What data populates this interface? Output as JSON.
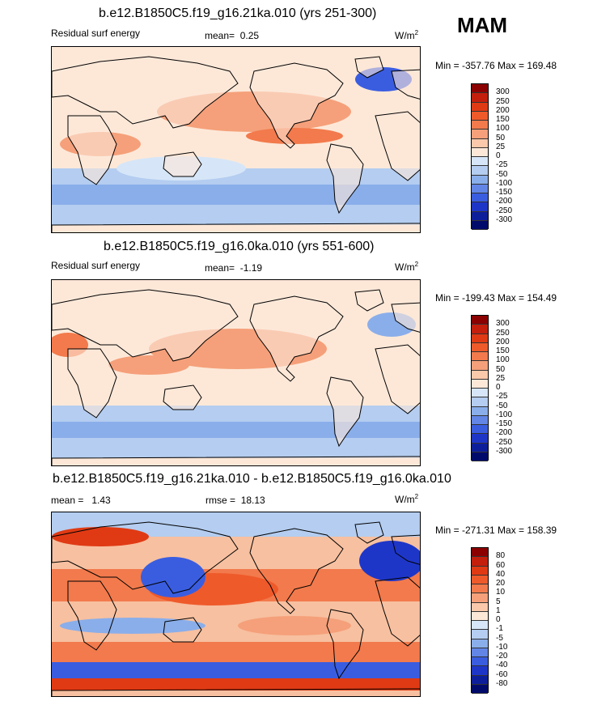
{
  "season": "MAM",
  "panels": [
    {
      "title": "b.e12.B1850C5.f19_g16.21ka.010 (yrs 251-300)",
      "left_label": "Residual surf energy",
      "stat_label": "mean=",
      "stat_value": "0.25",
      "units": "W/m",
      "units_sup": "2",
      "minmax": "Min = -357.76 Max = 169.48",
      "levels": [
        "300",
        "250",
        "200",
        "150",
        "100",
        "50",
        "25",
        "0",
        "-25",
        "-50",
        "-100",
        "-150",
        "-200",
        "-250",
        "-300"
      ],
      "colors": [
        "#8b0000",
        "#c41e0c",
        "#e03a14",
        "#ef5a2b",
        "#f27a4c",
        "#f5a07a",
        "#fac8aa",
        "#fde8d8",
        "#d6e6f8",
        "#b4cdf0",
        "#8aaeea",
        "#6285e6",
        "#3a5de0",
        "#1e36c8",
        "#0d1e9a",
        "#000a6a"
      ],
      "tone": "a"
    },
    {
      "title": "b.e12.B1850C5.f19_g16.0ka.010 (yrs 551-600)",
      "left_label": "Residual surf energy",
      "stat_label": "mean=",
      "stat_value": "-1.19",
      "units": "W/m",
      "units_sup": "2",
      "minmax": "Min = -199.43 Max = 154.49",
      "levels": [
        "300",
        "250",
        "200",
        "150",
        "100",
        "50",
        "25",
        "0",
        "-25",
        "-50",
        "-100",
        "-150",
        "-200",
        "-250",
        "-300"
      ],
      "colors": [
        "#8b0000",
        "#c41e0c",
        "#e03a14",
        "#ef5a2b",
        "#f27a4c",
        "#f5a07a",
        "#fac8aa",
        "#fde8d8",
        "#d6e6f8",
        "#b4cdf0",
        "#8aaeea",
        "#6285e6",
        "#3a5de0",
        "#1e36c8",
        "#0d1e9a",
        "#000a6a"
      ],
      "tone": "b"
    },
    {
      "title": "b.e12.B1850C5.f19_g16.21ka.010 - b.e12.B1850C5.f19_g16.0ka.010",
      "left_label": "mean =",
      "left_value": "1.43",
      "stat_label": "rmse =",
      "stat_value": "18.13",
      "units": "W/m",
      "units_sup": "2",
      "minmax": "Min = -271.31 Max = 158.39",
      "levels": [
        "80",
        "60",
        "40",
        "20",
        "10",
        "5",
        "1",
        "0",
        "-1",
        "-5",
        "-10",
        "-20",
        "-40",
        "-60",
        "-80"
      ],
      "colors": [
        "#8b0000",
        "#c41e0c",
        "#e03a14",
        "#ef5a2b",
        "#f27a4c",
        "#f5a07a",
        "#fac8aa",
        "#fde8d8",
        "#d6e6f8",
        "#b4cdf0",
        "#8aaeea",
        "#6285e6",
        "#3a5de0",
        "#1e36c8",
        "#0d1e9a",
        "#000a6a"
      ],
      "tone": "c"
    }
  ],
  "chart_data": [
    {
      "type": "heatmap",
      "title": "b.e12.B1850C5.f19_g16.21ka.010 (yrs 251-300)",
      "variable": "Residual surf energy",
      "mean": 0.25,
      "min": -357.76,
      "max": 169.48,
      "units": "W/m2",
      "contour_levels": [
        -300,
        -250,
        -200,
        -150,
        -100,
        -50,
        -25,
        0,
        25,
        50,
        100,
        150,
        200,
        250,
        300
      ]
    },
    {
      "type": "heatmap",
      "title": "b.e12.B1850C5.f19_g16.0ka.010 (yrs 551-600)",
      "variable": "Residual surf energy",
      "mean": -1.19,
      "min": -199.43,
      "max": 154.49,
      "units": "W/m2",
      "contour_levels": [
        -300,
        -250,
        -200,
        -150,
        -100,
        -50,
        -25,
        0,
        25,
        50,
        100,
        150,
        200,
        250,
        300
      ]
    },
    {
      "type": "heatmap",
      "title": "b.e12.B1850C5.f19_g16.21ka.010 - b.e12.B1850C5.f19_g16.0ka.010",
      "mean": 1.43,
      "rmse": 18.13,
      "min": -271.31,
      "max": 158.39,
      "units": "W/m2",
      "contour_levels": [
        -80,
        -60,
        -40,
        -20,
        -10,
        -5,
        -1,
        0,
        1,
        5,
        10,
        20,
        40,
        60,
        80
      ]
    }
  ]
}
